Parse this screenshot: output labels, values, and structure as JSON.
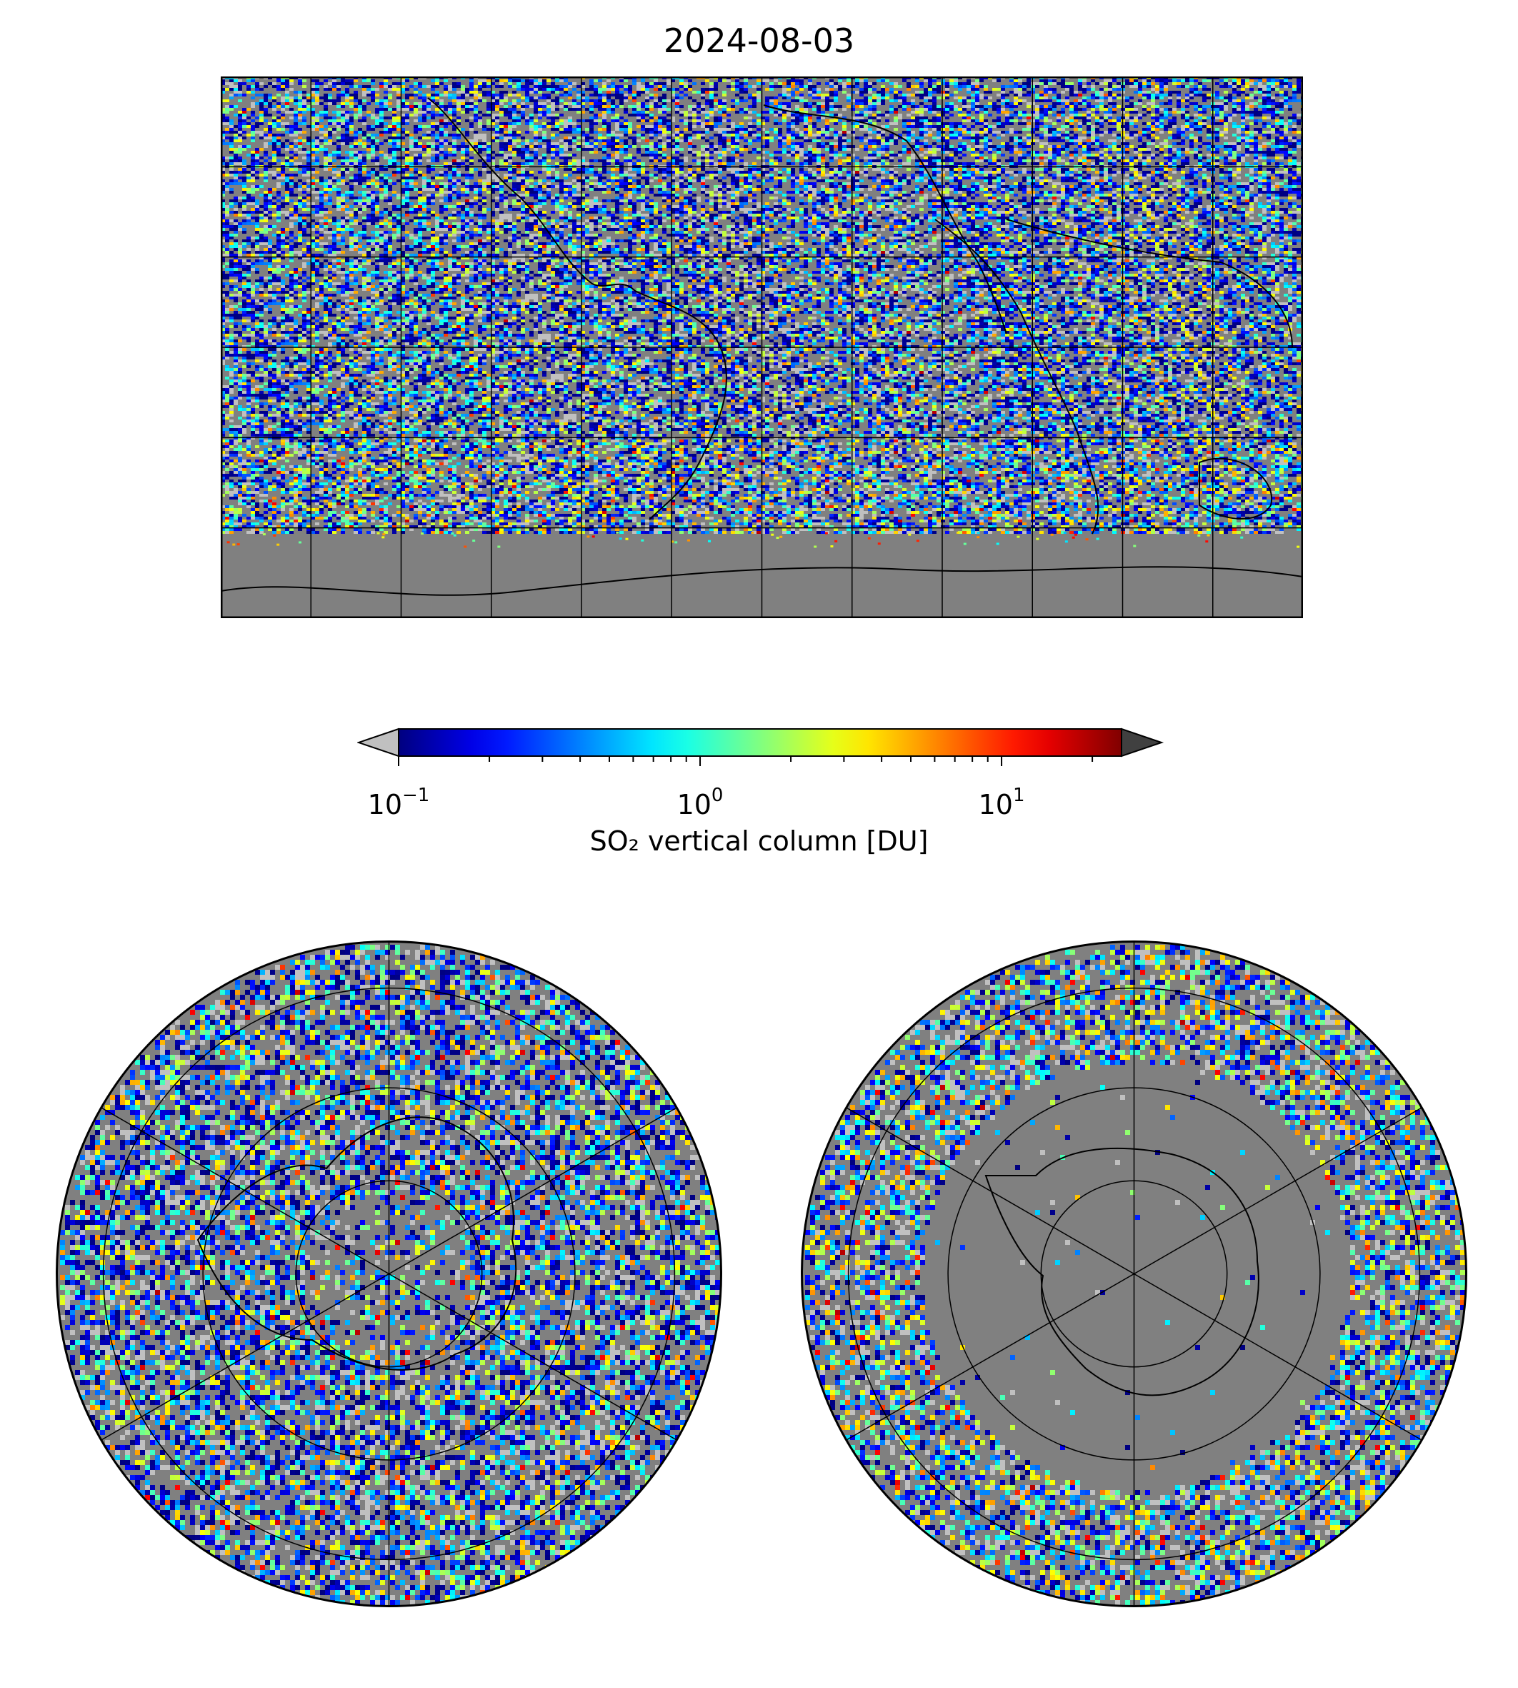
{
  "figure": {
    "title": "2024-08-03"
  },
  "colorbar": {
    "label": "SO₂ vertical column [DU]",
    "scale": "log",
    "range": [
      0.1,
      25
    ],
    "colormap": "jet",
    "ticks": [
      {
        "base": "10",
        "exp": "−1",
        "value": 0.1
      },
      {
        "base": "10",
        "exp": "0",
        "value": 1
      },
      {
        "base": "10",
        "exp": "1",
        "value": 10
      }
    ],
    "under_color": "#c0c0c0",
    "over_color": "#404040"
  },
  "maps": {
    "global": {
      "projection": "equirectangular",
      "gridlines": true,
      "background": "#808080"
    },
    "north_polar": {
      "projection": "north-polar-stereographic",
      "gridlines": true
    },
    "south_polar": {
      "projection": "south-polar-stereographic",
      "gridlines": true
    }
  },
  "colors": {
    "no_data": "#808080",
    "low": "#c0c0c0",
    "coastline": "#000000"
  }
}
